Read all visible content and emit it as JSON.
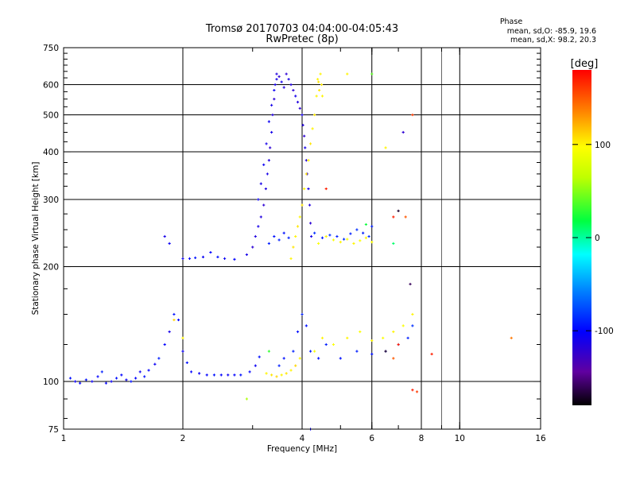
{
  "header": {
    "title_line1": "Tromsø 20170703 04:04:00-04:05:43",
    "title_line2": "RwPretec (8p)",
    "phase_label": "Phase",
    "phase_o": "mean, sd,O: -85.9, 19.6",
    "phase_x": "mean, sd,X:  98.2, 20.3"
  },
  "colorbar": {
    "unit_label": "[deg]",
    "min": -180,
    "max": 180,
    "ticks": [
      {
        "value": 100,
        "label": "100"
      },
      {
        "value": 0,
        "label": "0"
      },
      {
        "value": -100,
        "label": "-100"
      }
    ]
  },
  "chart_data": {
    "type": "scatter",
    "title": "Tromsø 20170703 04:04:00-04:05:43",
    "subtitle": "RwPretec (8p)",
    "xlabel": "Frequency [MHz]",
    "ylabel": "Stationary phase Virtual Height [km]",
    "x_scale": "log",
    "y_scale": "log",
    "xlim": [
      1,
      16
    ],
    "ylim": [
      75,
      750
    ],
    "grid": true,
    "x_ticks": [
      {
        "value": 1,
        "label": "1"
      },
      {
        "value": 2,
        "label": "2"
      },
      {
        "value": 4,
        "label": "4"
      },
      {
        "value": 6,
        "label": "6"
      },
      {
        "value": 8,
        "label": "8"
      },
      {
        "value": 10,
        "label": "10"
      },
      {
        "value": 16,
        "label": "16"
      }
    ],
    "y_ticks": [
      {
        "value": 75,
        "label": "75"
      },
      {
        "value": 100,
        "label": "100"
      },
      {
        "value": 200,
        "label": "200"
      },
      {
        "value": 300,
        "label": "300"
      },
      {
        "value": 400,
        "label": "400"
      },
      {
        "value": 500,
        "label": "500"
      },
      {
        "value": 600,
        "label": "600"
      },
      {
        "value": 750,
        "label": "750"
      }
    ],
    "series": [
      {
        "name": "O",
        "points": [
          [
            1.04,
            102,
            -95
          ],
          [
            1.07,
            100,
            -105
          ],
          [
            1.1,
            99,
            -100
          ],
          [
            1.14,
            101,
            -95
          ],
          [
            1.18,
            100,
            -105
          ],
          [
            1.22,
            103,
            -100
          ],
          [
            1.25,
            106,
            -90
          ],
          [
            1.28,
            99,
            -100
          ],
          [
            1.32,
            100,
            -105
          ],
          [
            1.36,
            102,
            -95
          ],
          [
            1.4,
            104,
            -100
          ],
          [
            1.44,
            101,
            -105
          ],
          [
            1.48,
            100,
            -95
          ],
          [
            1.52,
            102,
            -100
          ],
          [
            1.56,
            106,
            -105
          ],
          [
            1.6,
            103,
            -95
          ],
          [
            1.64,
            107,
            -100
          ],
          [
            1.7,
            111,
            -105
          ],
          [
            1.74,
            115,
            -90
          ],
          [
            1.8,
            125,
            -100
          ],
          [
            1.85,
            135,
            -110
          ],
          [
            1.9,
            150,
            -95
          ],
          [
            1.95,
            145,
            -100
          ],
          [
            2.0,
            120,
            -105
          ],
          [
            2.05,
            112,
            -95
          ],
          [
            2.1,
            106,
            -100
          ],
          [
            2.2,
            105,
            -105
          ],
          [
            2.3,
            104,
            -100
          ],
          [
            2.4,
            104,
            -95
          ],
          [
            2.5,
            104,
            -100
          ],
          [
            2.6,
            104,
            -105
          ],
          [
            2.7,
            104,
            -100
          ],
          [
            2.8,
            104,
            -95
          ],
          [
            2.95,
            106,
            -100
          ],
          [
            3.05,
            110,
            -105
          ],
          [
            3.12,
            116,
            -95
          ],
          [
            2.0,
            210,
            -105
          ],
          [
            2.08,
            210,
            -100
          ],
          [
            2.15,
            211,
            -95
          ],
          [
            2.25,
            212,
            -105
          ],
          [
            2.35,
            218,
            -100
          ],
          [
            2.45,
            212,
            -95
          ],
          [
            2.55,
            210,
            -105
          ],
          [
            2.7,
            209,
            -100
          ],
          [
            2.9,
            215,
            -110
          ],
          [
            3.0,
            225,
            -120
          ],
          [
            3.05,
            240,
            -115
          ],
          [
            3.1,
            255,
            -110
          ],
          [
            3.15,
            270,
            -115
          ],
          [
            3.2,
            290,
            -120
          ],
          [
            3.24,
            320,
            -115
          ],
          [
            3.27,
            350,
            -110
          ],
          [
            3.3,
            380,
            -115
          ],
          [
            3.32,
            410,
            -120
          ],
          [
            3.35,
            450,
            -110
          ],
          [
            3.37,
            500,
            -115
          ],
          [
            3.4,
            550,
            -120
          ],
          [
            3.42,
            600,
            -110
          ],
          [
            3.45,
            640,
            -115
          ],
          [
            3.5,
            630,
            -120
          ],
          [
            3.55,
            610,
            -110
          ],
          [
            3.6,
            590,
            -115
          ],
          [
            3.65,
            640,
            -120
          ],
          [
            3.7,
            620,
            -110
          ],
          [
            3.75,
            600,
            -115
          ],
          [
            3.8,
            580,
            -120
          ],
          [
            3.85,
            560,
            -110
          ],
          [
            3.9,
            540,
            -115
          ],
          [
            3.95,
            520,
            -120
          ],
          [
            4.0,
            500,
            -110
          ],
          [
            4.02,
            470,
            -115
          ],
          [
            4.05,
            440,
            -120
          ],
          [
            4.07,
            410,
            -110
          ],
          [
            4.1,
            380,
            -115
          ],
          [
            4.12,
            350,
            -120
          ],
          [
            4.15,
            320,
            -110
          ],
          [
            4.18,
            290,
            -115
          ],
          [
            4.2,
            260,
            -120
          ],
          [
            4.22,
            240,
            -110
          ],
          [
            3.1,
            300,
            -105
          ],
          [
            3.15,
            330,
            -110
          ],
          [
            3.2,
            370,
            -105
          ],
          [
            3.25,
            420,
            -110
          ],
          [
            3.3,
            480,
            -105
          ],
          [
            3.35,
            530,
            -110
          ],
          [
            3.4,
            580,
            -105
          ],
          [
            3.45,
            620,
            -110
          ],
          [
            3.3,
            230,
            -90
          ],
          [
            3.4,
            240,
            -95
          ],
          [
            3.5,
            235,
            -90
          ],
          [
            3.6,
            245,
            -95
          ],
          [
            3.7,
            238,
            -90
          ],
          [
            4.3,
            245,
            -85
          ],
          [
            4.5,
            238,
            -90
          ],
          [
            4.7,
            242,
            -85
          ],
          [
            4.9,
            240,
            -90
          ],
          [
            5.1,
            236,
            -85
          ],
          [
            5.3,
            244,
            -90
          ],
          [
            5.5,
            250,
            -85
          ],
          [
            5.7,
            245,
            -90
          ],
          [
            5.9,
            240,
            -85
          ],
          [
            6.0,
            255,
            -90
          ],
          [
            3.5,
            110,
            -90
          ],
          [
            3.6,
            115,
            -95
          ],
          [
            3.8,
            120,
            -90
          ],
          [
            3.9,
            135,
            -95
          ],
          [
            4.0,
            150,
            -90
          ],
          [
            4.1,
            140,
            -95
          ],
          [
            4.2,
            120,
            -90
          ],
          [
            4.4,
            115,
            -95
          ],
          [
            4.6,
            125,
            -90
          ],
          [
            5.0,
            115,
            -95
          ],
          [
            5.5,
            120,
            -90
          ],
          [
            6.0,
            118,
            -95
          ],
          [
            6.5,
            120,
            -90
          ],
          [
            7.0,
            125,
            -95
          ],
          [
            7.4,
            130,
            -90
          ],
          [
            7.6,
            140,
            -85
          ],
          [
            1.8,
            240,
            -110
          ],
          [
            1.85,
            230,
            -105
          ]
        ]
      },
      {
        "name": "X",
        "points": [
          [
            3.25,
            105,
            100
          ],
          [
            3.35,
            104,
            105
          ],
          [
            3.45,
            103,
            110
          ],
          [
            3.55,
            104,
            100
          ],
          [
            3.65,
            105,
            105
          ],
          [
            3.75,
            107,
            100
          ],
          [
            3.85,
            110,
            110
          ],
          [
            3.95,
            115,
            100
          ],
          [
            3.75,
            210,
            100
          ],
          [
            3.8,
            225,
            105
          ],
          [
            3.85,
            240,
            100
          ],
          [
            3.9,
            255,
            105
          ],
          [
            3.95,
            270,
            100
          ],
          [
            4.0,
            290,
            105
          ],
          [
            4.05,
            320,
            100
          ],
          [
            4.1,
            350,
            105
          ],
          [
            4.15,
            380,
            100
          ],
          [
            4.2,
            420,
            105
          ],
          [
            4.25,
            460,
            100
          ],
          [
            4.3,
            500,
            105
          ],
          [
            4.35,
            560,
            100
          ],
          [
            4.4,
            610,
            105
          ],
          [
            4.45,
            640,
            100
          ],
          [
            4.48,
            600,
            105
          ],
          [
            4.5,
            560,
            100
          ],
          [
            4.42,
            580,
            105
          ],
          [
            4.38,
            620,
            100
          ],
          [
            4.4,
            230,
            95
          ],
          [
            4.6,
            240,
            100
          ],
          [
            4.8,
            235,
            95
          ],
          [
            5.0,
            232,
            100
          ],
          [
            5.2,
            236,
            95
          ],
          [
            5.4,
            230,
            100
          ],
          [
            5.6,
            234,
            95
          ],
          [
            5.8,
            238,
            100
          ],
          [
            6.0,
            232,
            95
          ],
          [
            4.3,
            120,
            95
          ],
          [
            4.5,
            130,
            100
          ],
          [
            4.8,
            125,
            95
          ],
          [
            5.2,
            130,
            100
          ],
          [
            5.6,
            135,
            95
          ],
          [
            6.0,
            128,
            100
          ],
          [
            6.4,
            130,
            95
          ],
          [
            6.8,
            135,
            100
          ],
          [
            7.2,
            140,
            95
          ],
          [
            7.6,
            150,
            100
          ],
          [
            2.0,
            130,
            100
          ],
          [
            1.9,
            145,
            110
          ],
          [
            5.2,
            640,
            100
          ],
          [
            6.5,
            410,
            100
          ]
        ]
      },
      {
        "name": "other",
        "points": [
          [
            6.8,
            270,
            170
          ],
          [
            7.0,
            280,
            -170
          ],
          [
            7.3,
            270,
            150
          ],
          [
            7.5,
            180,
            -160
          ],
          [
            7.6,
            500,
            160
          ],
          [
            7.2,
            450,
            -120
          ],
          [
            7.6,
            95,
            170
          ],
          [
            7.8,
            94,
            160
          ],
          [
            8.5,
            118,
            170
          ],
          [
            13.5,
            130,
            140
          ],
          [
            7.0,
            125,
            170
          ],
          [
            6.8,
            115,
            150
          ],
          [
            6.5,
            120,
            -170
          ],
          [
            4.6,
            320,
            170
          ],
          [
            6.0,
            640,
            40
          ],
          [
            3.3,
            120,
            30
          ],
          [
            2.9,
            90,
            60
          ],
          [
            4.2,
            75,
            -100
          ],
          [
            5.8,
            258,
            20
          ],
          [
            6.8,
            230,
            10
          ]
        ]
      }
    ]
  }
}
